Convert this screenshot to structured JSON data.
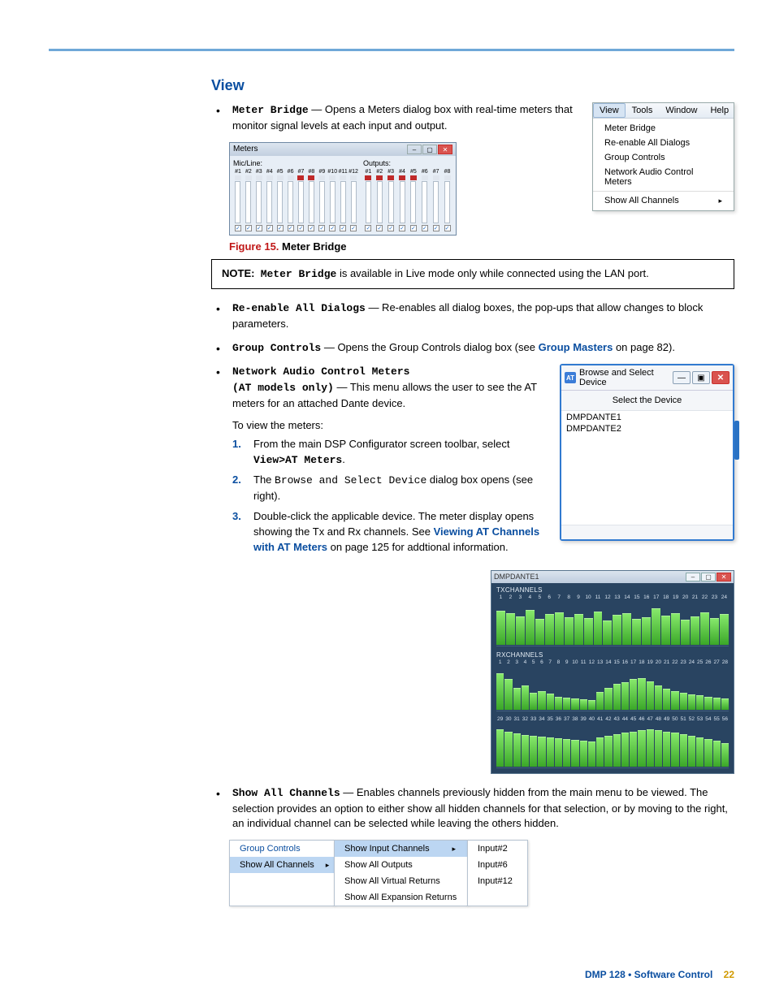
{
  "section_title": "View",
  "view_menu": {
    "menubar": [
      "View",
      "Tools",
      "Window",
      "Help"
    ],
    "active_index": 0,
    "items": [
      "Meter Bridge",
      "Re-enable All Dialogs",
      "Group Controls",
      "Network Audio Control Meters"
    ],
    "sub_item": "Show All Channels"
  },
  "bullets": {
    "meter_bridge": {
      "term": "Meter Bridge",
      "text": " — Opens a Meters dialog box with real-time meters that monitor signal levels at each input and output."
    },
    "reenable": {
      "term": "Re-enable All Dialogs",
      "text": " — Re-enables all dialog boxes, the pop-ups that allow changes to block parameters."
    },
    "group_controls": {
      "term": "Group Controls",
      "text_a": " — Opens the Group Controls dialog box (see ",
      "link": "Group Masters",
      "text_b": " on page 82)."
    },
    "nac": {
      "term_a": "Network Audio Control Meters",
      "term_b": "(AT models only)",
      "text": " — This menu allows the user to see the AT meters for an attached Dante device.",
      "to_view": "To view the meters:"
    },
    "show_all": {
      "term": "Show All Channels",
      "text": " — Enables channels previously hidden from the main menu to be viewed. The selection provides an option to either show all hidden channels for that selection, or by moving to the right, an individual channel can be selected while leaving the others hidden."
    }
  },
  "steps": {
    "s1a": "From the main DSP Configurator screen toolbar, select ",
    "s1b": "View>AT Meters",
    "s1c": ".",
    "s2a": "The ",
    "s2b": "Browse and Select Device",
    "s2c": " dialog box opens (see right).",
    "s3a": "Double-click the applicable device. The meter display opens showing the Tx and Rx channels. See ",
    "s3link": "Viewing AT Channels with AT Meters",
    "s3b": " on page 125 for addtional information."
  },
  "fig15": {
    "num": "Figure 15.",
    "title": " Meter Bridge"
  },
  "note": {
    "label": "NOTE:",
    "term": "Meter Bridge",
    "rest": " is available in Live mode only while connected using the LAN port."
  },
  "meter_bridge": {
    "title": "Meters",
    "mic_label": "Mic/Line:",
    "out_label": "Outputs:",
    "mic_count": 12,
    "out_count": 8,
    "mic_peaks": [
      0,
      0,
      0,
      0,
      0,
      0,
      1,
      1,
      0,
      0,
      0,
      0
    ],
    "out_peaks": [
      1,
      1,
      1,
      1,
      1,
      0,
      0,
      0
    ],
    "peak_colors": {
      "on": "#c02a2a",
      "off": "#e0e6ee"
    }
  },
  "browse_dlg": {
    "title": "Browse and Select Device",
    "header": "Select the Device",
    "items": [
      "DMPDANTE1",
      "DMPDANTE2"
    ]
  },
  "dante": {
    "title": "DMPDANTE1",
    "tx_label": "TXCHANNELS",
    "rx_label": "RXCHANNELS",
    "tx_range": [
      1,
      24
    ],
    "rx_range_a": [
      1,
      28
    ],
    "rx_range_b": [
      29,
      56
    ],
    "tx_heights": [
      78,
      72,
      65,
      80,
      58,
      70,
      74,
      62,
      69,
      60,
      75,
      55,
      68,
      72,
      59,
      63,
      82,
      66,
      71,
      57,
      64,
      73,
      61,
      70
    ],
    "rx_a_heights": [
      82,
      70,
      50,
      55,
      38,
      42,
      36,
      30,
      28,
      26,
      24,
      22,
      40,
      50,
      58,
      62,
      70,
      72,
      65,
      55,
      48,
      42,
      38,
      35,
      32,
      30,
      28,
      26
    ],
    "rx_b_heights": [
      85,
      80,
      76,
      72,
      70,
      68,
      66,
      64,
      62,
      60,
      58,
      56,
      66,
      70,
      74,
      78,
      80,
      82,
      84,
      82,
      80,
      78,
      74,
      70,
      66,
      62,
      58,
      54
    ],
    "bg": "#294461",
    "bar_color": "#5fcf3f"
  },
  "cascade": {
    "m1": [
      "Group Controls",
      "Show All Channels"
    ],
    "m2": [
      "Show Input Channels",
      "Show All Outputs",
      "Show All Virtual Returns",
      "Show All Expansion Returns"
    ],
    "m3": [
      "Input#2",
      "Input#6",
      "Input#12"
    ]
  },
  "footer": {
    "prod": "DMP 128 • Software Control",
    "page": "22"
  }
}
